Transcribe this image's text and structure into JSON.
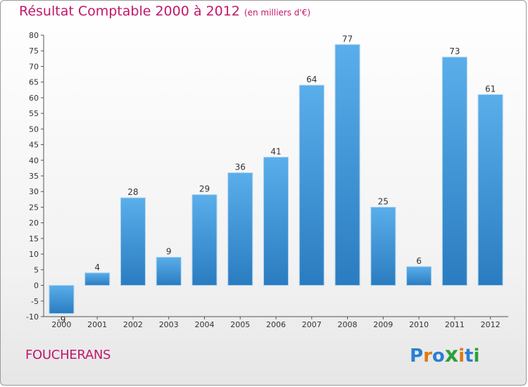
{
  "header": {
    "title": "Résultat Comptable 2000 à 2012",
    "subtitle": "(en milliers d'€)"
  },
  "footer": {
    "commune": "FOUCHERANS",
    "logo_letters": [
      "P",
      "r",
      "o",
      "x",
      "i",
      "t",
      "i"
    ],
    "logo_colors": [
      "#2a7fd4",
      "#e07a10",
      "#2a7fd4",
      "#2aa13a",
      "#e07a10",
      "#2a7fd4",
      "#2aa13a"
    ]
  },
  "chart_data": {
    "type": "bar",
    "title": "Résultat Comptable 2000 à 2012",
    "ylabel": "",
    "xlabel": "",
    "categories": [
      "2000",
      "2001",
      "2002",
      "2003",
      "2004",
      "2005",
      "2006",
      "2007",
      "2008",
      "2009",
      "2010",
      "2011",
      "2012"
    ],
    "values": [
      -9,
      4,
      28,
      9,
      29,
      36,
      41,
      64,
      77,
      25,
      6,
      73,
      61
    ],
    "ylim": [
      -10,
      80
    ],
    "ytick_step": 5,
    "grid": false,
    "bar_color": "#3d9be0",
    "bar_color_dark": "#2a7cc0"
  }
}
